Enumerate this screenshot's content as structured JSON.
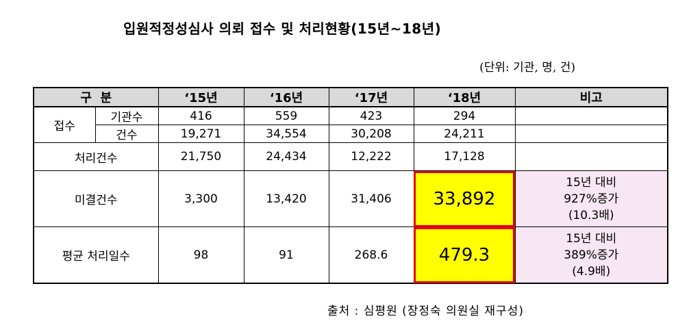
{
  "title": "입원적정성심사 의뢰 접수 및 처리현황(15년~18년)",
  "unit": "(단위: 기관, 명, 건)",
  "header": {
    "category": "구  분",
    "years": [
      "‘15년",
      "‘16년",
      "‘17년",
      "‘18년"
    ],
    "remarks": "비고"
  },
  "rows": {
    "receipt": {
      "label": "접수",
      "institutions": {
        "label": "기관수",
        "values": [
          "416",
          "559",
          "423",
          "294"
        ]
      },
      "cases": {
        "label": "건수",
        "values": [
          "19,271",
          "34,554",
          "30,208",
          "24,211"
        ]
      }
    },
    "processed": {
      "label": "처리건수",
      "values": [
        "21,750",
        "24,434",
        "12,222",
        "17,128"
      ]
    },
    "pending": {
      "label": "미결건수",
      "values": [
        "3,300",
        "13,420",
        "31,406",
        "33,892"
      ],
      "note": [
        "15년 대비",
        "927%증가",
        "(10.3배)"
      ]
    },
    "avg_days": {
      "label": "평균 처리일수",
      "values": [
        "98",
        "91",
        "268.6",
        "479.3"
      ],
      "note": [
        "15년 대비",
        "389%증가",
        "(4.9배)"
      ]
    }
  },
  "source": "출처 : 심평원 (장정숙 의원실 재구성)",
  "colors": {
    "header_bg": "#d9d9d9",
    "highlight_bg": "#ffff00",
    "highlight_border": "#e3001b",
    "note_bg": "#f7e6f3"
  }
}
